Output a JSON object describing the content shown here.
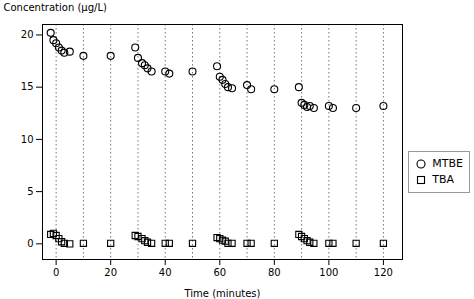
{
  "chart_data": {
    "type": "scatter",
    "xlabel": "Time (minutes)",
    "ylabel": "Concentration (μg/L)",
    "xlim": [
      -5,
      127
    ],
    "ylim": [
      -1.5,
      21
    ],
    "xticks": [
      0,
      20,
      40,
      60,
      80,
      100,
      120
    ],
    "yticks": [
      0,
      5,
      10,
      15,
      20
    ],
    "grid": false,
    "legend": "right",
    "vlines": [
      0,
      10,
      20,
      30,
      40,
      50,
      60,
      70,
      80,
      90,
      100,
      110,
      120
    ],
    "x": [
      -2.0,
      -1.0,
      0.0,
      1.0,
      2.0,
      3.0,
      5.0,
      10.0,
      20.0,
      29.0,
      30.0,
      31.5,
      32.5,
      33.5,
      35.0,
      40.0,
      41.5,
      50.0,
      59.0,
      60.0,
      61.0,
      62.0,
      63.0,
      64.5,
      70.0,
      71.5,
      80.0,
      89.0,
      90.0,
      91.0,
      92.0,
      93.0,
      94.5,
      100.0,
      101.5,
      110.0,
      120.0
    ],
    "series": [
      {
        "name": "MTBE",
        "color": "#000000",
        "marker": "circle",
        "values": [
          20.2,
          19.5,
          19.2,
          18.8,
          18.5,
          18.3,
          18.4,
          18.0,
          18.0,
          18.8,
          17.8,
          17.3,
          17.1,
          16.8,
          16.5,
          16.5,
          16.3,
          16.5,
          17.0,
          16.0,
          15.7,
          15.3,
          15.0,
          14.9,
          15.2,
          14.8,
          14.8,
          15.0,
          13.5,
          13.3,
          13.1,
          13.2,
          13.0,
          13.2,
          13.0,
          13.0,
          13.2
        ]
      },
      {
        "name": "TBA",
        "color": "#000000",
        "marker": "square",
        "values": [
          0.9,
          1.0,
          0.8,
          0.5,
          0.2,
          0.05,
          0.0,
          0.05,
          0.05,
          0.8,
          0.7,
          0.5,
          0.3,
          0.15,
          0.05,
          0.05,
          0.05,
          0.05,
          0.6,
          0.5,
          0.35,
          0.25,
          0.05,
          0.05,
          0.05,
          0.05,
          0.05,
          0.9,
          0.7,
          0.5,
          0.3,
          0.15,
          0.05,
          0.05,
          0.05,
          0.05,
          0.05
        ]
      }
    ]
  }
}
